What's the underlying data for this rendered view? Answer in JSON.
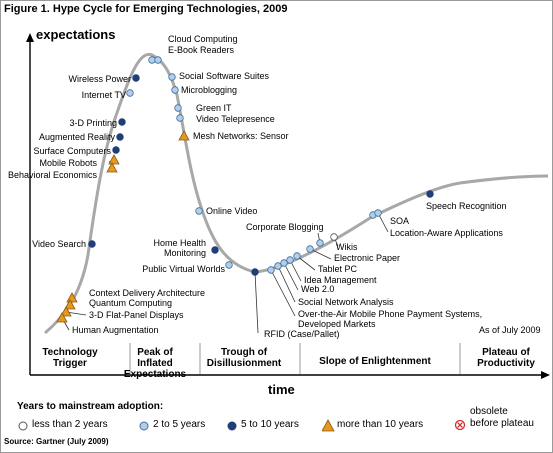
{
  "title": "Figure 1. Hype Cycle for Emerging Technologies, 2009",
  "y_axis_label": "expectations",
  "x_axis_label": "time",
  "as_of": "As of July 2009",
  "source": "Source: Gartner (July 2009)",
  "phases": [
    {
      "id": "trigger",
      "label_lines": [
        "Technology",
        "Trigger"
      ]
    },
    {
      "id": "peak",
      "label_lines": [
        "Peak of",
        "Inflated",
        "Expectations"
      ]
    },
    {
      "id": "trough",
      "label_lines": [
        "Trough of",
        "Disillusionment"
      ]
    },
    {
      "id": "slope",
      "label_lines": [
        "Slope of Enlightenment"
      ]
    },
    {
      "id": "plateau",
      "label_lines": [
        "Plateau of",
        "Productivity"
      ]
    }
  ],
  "legend": {
    "title": "Years to mainstream adoption:",
    "items": [
      {
        "marker": "white-circle",
        "label": "less than 2 years"
      },
      {
        "marker": "light-blue-circle",
        "label": "2 to 5 years"
      },
      {
        "marker": "dark-blue-circle",
        "label": "5 to 10 years"
      },
      {
        "marker": "orange-triangle",
        "label": "more than 10 years"
      }
    ],
    "obsolete_line1": "obsolete",
    "obsolete_line2": "before plateau",
    "obsolete_marker": "red-circle-x"
  },
  "colors": {
    "curve": "#a8a8a8",
    "white_circle_fill": "#ffffff",
    "white_circle_stroke": "#555555",
    "light_blue": "#b3cee8",
    "light_blue_stroke": "#3f6f9e",
    "dark_blue": "#1f3f7a",
    "orange": "#e8981e",
    "orange_stroke": "#8a5a10",
    "obsolete_red": "#d62c2c",
    "divider": "#9a9a9a"
  },
  "technologies": [
    {
      "name": "Cloud Computing",
      "adoption": "2-5"
    },
    {
      "name": "E-Book Readers",
      "adoption": "2-5"
    },
    {
      "name": "Wireless Power",
      "adoption": "5-10"
    },
    {
      "name": "Social Software Suites",
      "adoption": "2-5"
    },
    {
      "name": "Internet TV",
      "adoption": "2-5"
    },
    {
      "name": "Microblogging",
      "adoption": "2-5"
    },
    {
      "name": "Green IT",
      "adoption": "2-5"
    },
    {
      "name": "Video Telepresence",
      "adoption": "2-5"
    },
    {
      "name": "3-D Printing",
      "adoption": "5-10"
    },
    {
      "name": "Mesh Networks: Sensor",
      "adoption": ">10"
    },
    {
      "name": "Augmented Reality",
      "adoption": "5-10"
    },
    {
      "name": "Surface Computers",
      "adoption": "5-10"
    },
    {
      "name": "Mobile Robots",
      "adoption": ">10"
    },
    {
      "name": "Behavioral Economics",
      "adoption": ">10"
    },
    {
      "name": "Online Video",
      "adoption": "2-5"
    },
    {
      "name": "Video Search",
      "adoption": "5-10"
    },
    {
      "name": "Home Health Monitoring",
      "adoption": "5-10"
    },
    {
      "name": "Public Virtual Worlds",
      "adoption": "2-5"
    },
    {
      "name": "RFID (Case/Pallet)",
      "adoption": "5-10"
    },
    {
      "name": "Over-the-Air Mobile Phone Payment Systems, Developed Markets",
      "adoption": "2-5"
    },
    {
      "name": "Social Network Analysis",
      "adoption": "2-5"
    },
    {
      "name": "Web 2.0",
      "adoption": "2-5"
    },
    {
      "name": "Idea Management",
      "adoption": "2-5"
    },
    {
      "name": "Tablet PC",
      "adoption": "2-5"
    },
    {
      "name": "Electronic Paper",
      "adoption": "2-5"
    },
    {
      "name": "Wikis",
      "adoption": "<2"
    },
    {
      "name": "Corporate Blogging",
      "adoption": "2-5"
    },
    {
      "name": "SOA",
      "adoption": "2-5"
    },
    {
      "name": "Location-Aware Applications",
      "adoption": "2-5"
    },
    {
      "name": "Speech Recognition",
      "adoption": "5-10"
    },
    {
      "name": "Context Delivery Architecture",
      "adoption": ">10"
    },
    {
      "name": "Quantum Computing",
      "adoption": ">10"
    },
    {
      "name": "3-D Flat-Panel Displays",
      "adoption": ">10"
    },
    {
      "name": "Human Augmentation",
      "adoption": ">10"
    }
  ],
  "label_lines": {
    "Over-the-Air Mobile Phone Payment Systems, Developed Markets": [
      "Over-the-Air Mobile Phone Payment Systems,",
      "Developed Markets"
    ],
    "Home Health Monitoring": [
      "Home Health",
      "Monitoring"
    ]
  }
}
